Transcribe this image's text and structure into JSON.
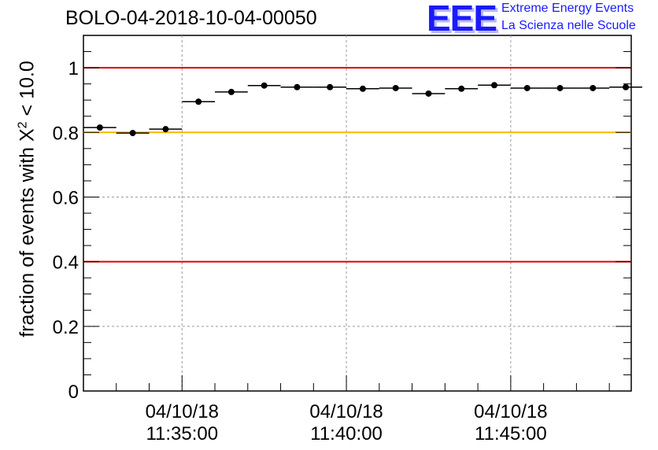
{
  "title": "BOLO-04-2018-10-04-00050",
  "logo": {
    "mark": "EEE",
    "line1": "Extreme Energy Events",
    "line2": "La Scienza nelle Scuole"
  },
  "axis": {
    "ylabel_pre": "fraction of events with X",
    "ylabel_sup": "2",
    "ylabel_post": " < 10.0",
    "yticks": [
      "0",
      "0.2",
      "0.4",
      "0.6",
      "0.8",
      "1"
    ],
    "xticks": [
      {
        "date": "04/10/18",
        "time": "11:35:00"
      },
      {
        "date": "04/10/18",
        "time": "11:40:00"
      },
      {
        "date": "04/10/18",
        "time": "11:45:00"
      }
    ]
  },
  "chart_data": {
    "type": "scatter",
    "title": "BOLO-04-2018-10-04-00050",
    "xlabel": "",
    "ylabel": "fraction of events with X^2 < 10.0",
    "ylim": [
      0,
      1.1
    ],
    "x_time_range": [
      "11:32:00",
      "11:48:40"
    ],
    "x_tick_times": [
      "11:35:00",
      "11:40:00",
      "11:45:00"
    ],
    "x_bin_width_s": 60,
    "grid": true,
    "reference_lines": [
      {
        "y": 1.0,
        "color": "#e00000"
      },
      {
        "y": 0.8,
        "color": "#f5b800"
      },
      {
        "y": 0.4,
        "color": "#e00000"
      }
    ],
    "x": [
      "11:32:30",
      "11:33:30",
      "11:34:30",
      "11:35:30",
      "11:36:30",
      "11:37:30",
      "11:38:30",
      "11:39:30",
      "11:40:30",
      "11:41:30",
      "11:42:30",
      "11:43:30",
      "11:44:30",
      "11:45:30",
      "11:46:30",
      "11:47:30",
      "11:48:30"
    ],
    "values": [
      0.815,
      0.798,
      0.81,
      0.895,
      0.925,
      0.945,
      0.94,
      0.94,
      0.935,
      0.937,
      0.92,
      0.935,
      0.946,
      0.937,
      0.937,
      0.937,
      0.94
    ]
  }
}
